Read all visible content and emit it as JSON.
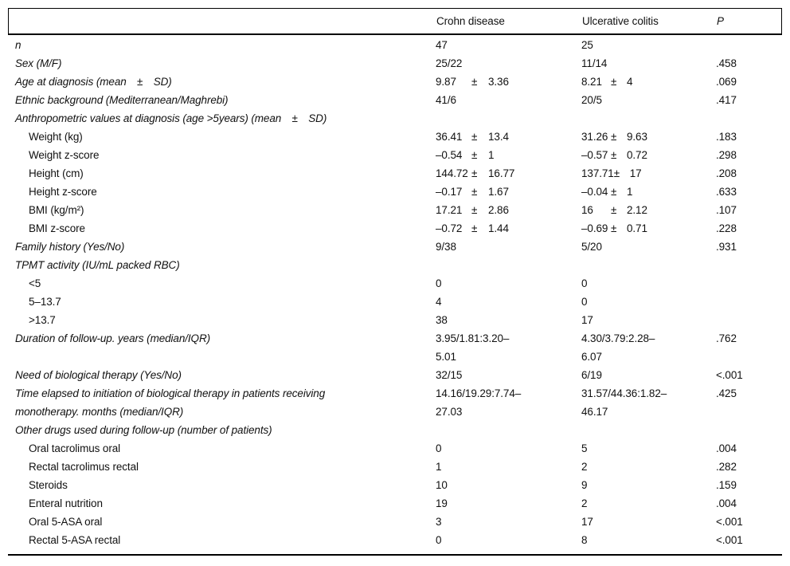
{
  "symbols": {
    "plus_minus": "±"
  },
  "table": {
    "columns": [
      "",
      "Crohn disease",
      "Ulcerative colitis",
      "P"
    ],
    "rows": [
      {
        "style": "main",
        "label": "n",
        "crohn": "47",
        "uc": "25",
        "p": ""
      },
      {
        "style": "main",
        "label": "Sex (M/F)",
        "crohn": "25/22",
        "uc": "11/14",
        "p": ".458"
      },
      {
        "style": "main",
        "label": "Age at diagnosis (mean ± SD)",
        "crohn": {
          "mean": "9.87",
          "sd": "3.36"
        },
        "uc": {
          "mean": "8.21",
          "sd": "4"
        },
        "p": ".069"
      },
      {
        "style": "main",
        "label": "Ethnic background (Mediterranean/Maghrebi)",
        "crohn": "41/6",
        "uc": "20/5",
        "p": ".417"
      },
      {
        "style": "section",
        "label": "Anthropometric values at diagnosis (age >5years) (mean ± SD)",
        "crohn": "",
        "uc": "",
        "p": ""
      },
      {
        "style": "sub",
        "label": "Weight (kg)",
        "crohn": {
          "mean": "36.41",
          "sd": "13.4"
        },
        "uc": {
          "mean": "31.26",
          "sd": "9.63"
        },
        "p": ".183"
      },
      {
        "style": "sub",
        "label": "Weight z-score",
        "crohn": {
          "mean": "–0.54",
          "sd": "1"
        },
        "uc": {
          "mean": "–0.57",
          "sd": "0.72"
        },
        "p": ".298"
      },
      {
        "style": "sub",
        "label": "Height (cm)",
        "crohn": {
          "mean": "144.72",
          "sd": "16.77"
        },
        "uc": {
          "mean": "137.71",
          "sd": "17"
        },
        "p": ".208"
      },
      {
        "style": "sub",
        "label": "Height z-score",
        "crohn": {
          "mean": "–0.17",
          "sd": "1.67"
        },
        "uc": {
          "mean": "–0.04",
          "sd": "1"
        },
        "p": ".633"
      },
      {
        "style": "sub",
        "label": "BMI (kg/m²)",
        "crohn": {
          "mean": "17.21",
          "sd": "2.86"
        },
        "uc": {
          "mean": "16",
          "sd": "2.12"
        },
        "p": ".107"
      },
      {
        "style": "sub",
        "label": "BMI z-score",
        "crohn": {
          "mean": "–0.72",
          "sd": "1.44"
        },
        "uc": {
          "mean": "–0.69",
          "sd": "0.71"
        },
        "p": ".228"
      },
      {
        "style": "main",
        "label": "Family history (Yes/No)",
        "crohn": "9/38",
        "uc": "5/20",
        "p": ".931"
      },
      {
        "style": "section",
        "label": "TPMT activity (IU/mL packed RBC)",
        "crohn": "",
        "uc": "",
        "p": ""
      },
      {
        "style": "sub",
        "label": "<5",
        "crohn": "0",
        "uc": "0",
        "p": ""
      },
      {
        "style": "sub",
        "label": "5–13.7",
        "crohn": "4",
        "uc": "0",
        "p": ""
      },
      {
        "style": "sub",
        "label": ">13.7",
        "crohn": "38",
        "uc": "17",
        "p": ""
      },
      {
        "style": "main",
        "label": "Duration of follow-up. years (median/IQR)",
        "crohn": "3.95/1.81:3.20–\n5.01",
        "uc": "4.30/3.79:2.28–\n6.07",
        "p": ".762"
      },
      {
        "style": "main",
        "label": "Need of biological therapy (Yes/No)",
        "crohn": "32/15",
        "uc": "6/19",
        "p": "<.001"
      },
      {
        "style": "main",
        "label": "Time elapsed to initiation of biological therapy in patients receiving\nmonotherapy. months (median/IQR)",
        "crohn": "14.16/19.29:7.74–\n27.03",
        "uc": "31.57/44.36:1.82–\n46.17",
        "p": ".425"
      },
      {
        "style": "section",
        "label": "Other drugs used during follow-up (number of patients)",
        "crohn": "",
        "uc": "",
        "p": ""
      },
      {
        "style": "sub",
        "label": "Oral tacrolimus oral",
        "crohn": "0",
        "uc": "5",
        "p": ".004"
      },
      {
        "style": "sub",
        "label": "Rectal tacrolimus rectal",
        "crohn": "1",
        "uc": "2",
        "p": ".282"
      },
      {
        "style": "sub",
        "label": "Steroids",
        "crohn": "10",
        "uc": "9",
        "p": ".159"
      },
      {
        "style": "sub",
        "label": "Enteral nutrition",
        "crohn": "19",
        "uc": "2",
        "p": ".004"
      },
      {
        "style": "sub",
        "label": "Oral 5-ASA oral",
        "crohn": "3",
        "uc": "17",
        "p": "<.001"
      },
      {
        "style": "sub",
        "label": "Rectal 5-ASA rectal",
        "crohn": "0",
        "uc": "8",
        "p": "<.001"
      }
    ]
  }
}
